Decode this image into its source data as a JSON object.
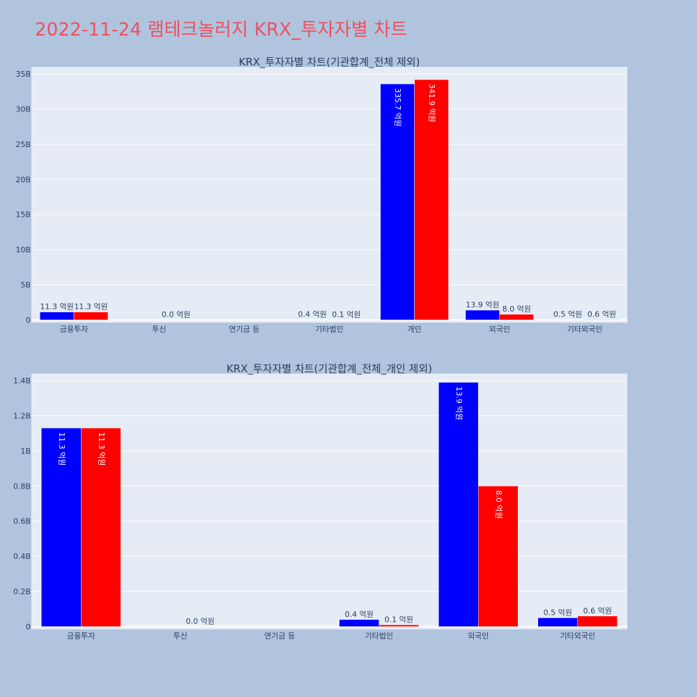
{
  "page_title": "2022-11-24 램테크놀러지 KRX_투자자별 차트",
  "colors": {
    "series1": "#0000ff",
    "series2": "#ff0000",
    "plot_bg": "#e5ecf6",
    "page_bg": "#b0c4de",
    "title": "#ef4f5f"
  },
  "chart_data": [
    {
      "type": "bar",
      "title": "KRX_투자자별 차트(기관합계_전체 제외)",
      "categories": [
        "금융투자",
        "투신",
        "연기금 등",
        "기타법인",
        "개인",
        "외국인",
        "기타외국인"
      ],
      "yticks": [
        "0",
        "5B",
        "10B",
        "15B",
        "20B",
        "25B",
        "30B",
        "35B"
      ],
      "ylim": [
        0,
        35000000000
      ],
      "grid": true,
      "legend": "none",
      "series": [
        {
          "values": [
            1130000000,
            0,
            0,
            40000000,
            33570000000,
            1390000000,
            50000000
          ],
          "labels": [
            "11.3 억원",
            "",
            "",
            "0.4 억원",
            "335.7 억원",
            "13.9 억원",
            "0.5 억원"
          ]
        },
        {
          "values": [
            1130000000,
            0,
            0,
            10000000,
            34190000000,
            800000000,
            60000000
          ],
          "labels": [
            "11.3 억원",
            "0.0 억원",
            "",
            "0.1 억원",
            "341.9 억원",
            "8.0 억원",
            "0.6 억원"
          ]
        }
      ]
    },
    {
      "type": "bar",
      "title": "KRX_투자자별 차트(기관합계_전체_개인 제외)",
      "categories": [
        "금융투자",
        "투신",
        "연기금 등",
        "기타법인",
        "외국인",
        "기타외국인"
      ],
      "yticks": [
        "0",
        "0.2B",
        "0.4B",
        "0.6B",
        "0.8B",
        "1B",
        "1.2B",
        "1.4B"
      ],
      "ylim": [
        0,
        1400000000
      ],
      "grid": true,
      "legend": "none",
      "series": [
        {
          "values": [
            1130000000,
            0,
            0,
            40000000,
            1390000000,
            50000000
          ],
          "labels": [
            "11.3 억원",
            "",
            "",
            "0.4 억원",
            "13.9 억원",
            "0.5 억원"
          ]
        },
        {
          "values": [
            1130000000,
            0,
            0,
            10000000,
            800000000,
            60000000
          ],
          "labels": [
            "11.3 억원",
            "0.0 억원",
            "",
            "0.1 억원",
            "8.0 억원",
            "0.6 억원"
          ]
        }
      ]
    }
  ]
}
